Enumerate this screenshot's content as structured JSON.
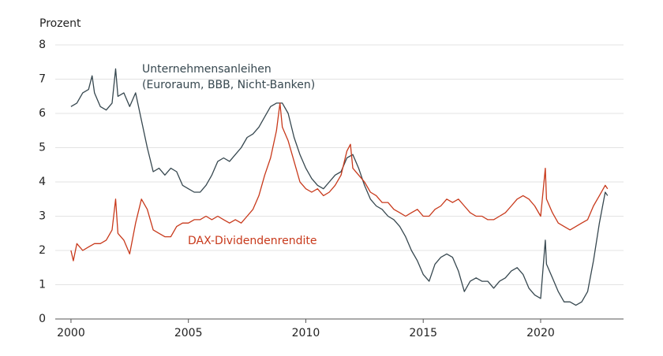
{
  "chart_data": {
    "type": "line",
    "ylabel": "Prozent",
    "annotation": "(Euroraum, BBB, Nicht-Banken)",
    "xlim": [
      1999.33,
      2023.53
    ],
    "xticks": [
      2000,
      2005,
      2010,
      2015,
      2020
    ],
    "ylim": [
      0,
      8
    ],
    "yticks": [
      0,
      1,
      2,
      3,
      4,
      5,
      6,
      7,
      8
    ],
    "grid": true,
    "series": [
      {
        "name": "Unternehmensanleihen",
        "color": "#36474f",
        "x": [
          2000.0,
          2000.25,
          2000.5,
          2000.75,
          2000.9,
          2001.0,
          2001.25,
          2001.5,
          2001.75,
          2001.9,
          2002.0,
          2002.25,
          2002.5,
          2002.75,
          2003.0,
          2003.25,
          2003.5,
          2003.75,
          2004.0,
          2004.25,
          2004.5,
          2004.75,
          2005.0,
          2005.25,
          2005.5,
          2005.75,
          2006.0,
          2006.25,
          2006.5,
          2006.75,
          2007.0,
          2007.25,
          2007.5,
          2007.75,
          2008.0,
          2008.25,
          2008.5,
          2008.75,
          2009.0,
          2009.25,
          2009.5,
          2009.75,
          2010.0,
          2010.25,
          2010.5,
          2010.75,
          2011.0,
          2011.25,
          2011.5,
          2011.75,
          2012.0,
          2012.25,
          2012.5,
          2012.75,
          2013.0,
          2013.25,
          2013.5,
          2013.75,
          2014.0,
          2014.25,
          2014.5,
          2014.75,
          2015.0,
          2015.25,
          2015.5,
          2015.75,
          2016.0,
          2016.25,
          2016.5,
          2016.75,
          2017.0,
          2017.25,
          2017.5,
          2017.75,
          2018.0,
          2018.25,
          2018.5,
          2018.75,
          2019.0,
          2019.25,
          2019.5,
          2019.75,
          2020.0,
          2020.2,
          2020.25,
          2020.5,
          2020.75,
          2021.0,
          2021.25,
          2021.5,
          2021.75,
          2022.0,
          2022.25,
          2022.5,
          2022.75,
          2022.85
        ],
        "values": [
          6.2,
          6.3,
          6.6,
          6.7,
          7.1,
          6.6,
          6.2,
          6.1,
          6.3,
          7.3,
          6.5,
          6.6,
          6.2,
          6.6,
          5.8,
          5.0,
          4.3,
          4.4,
          4.2,
          4.4,
          4.3,
          3.9,
          3.8,
          3.7,
          3.7,
          3.9,
          4.2,
          4.6,
          4.7,
          4.6,
          4.8,
          5.0,
          5.3,
          5.4,
          5.6,
          5.9,
          6.2,
          6.3,
          6.3,
          6.0,
          5.3,
          4.8,
          4.4,
          4.1,
          3.9,
          3.8,
          4.0,
          4.2,
          4.3,
          4.7,
          4.8,
          4.4,
          3.9,
          3.5,
          3.3,
          3.2,
          3.0,
          2.9,
          2.7,
          2.4,
          2.0,
          1.7,
          1.3,
          1.1,
          1.6,
          1.8,
          1.9,
          1.8,
          1.4,
          0.8,
          1.1,
          1.2,
          1.1,
          1.1,
          0.9,
          1.1,
          1.2,
          1.4,
          1.5,
          1.3,
          0.9,
          0.7,
          0.6,
          2.3,
          1.6,
          1.2,
          0.8,
          0.5,
          0.5,
          0.4,
          0.5,
          0.8,
          1.7,
          2.8,
          3.7,
          3.6
        ]
      },
      {
        "name": "DAX-Dividendenrendite",
        "color": "#c8391b",
        "x": [
          2000.0,
          2000.1,
          2000.25,
          2000.5,
          2000.75,
          2001.0,
          2001.25,
          2001.5,
          2001.75,
          2001.9,
          2002.0,
          2002.25,
          2002.5,
          2002.75,
          2003.0,
          2003.25,
          2003.5,
          2003.75,
          2004.0,
          2004.25,
          2004.5,
          2004.75,
          2005.0,
          2005.25,
          2005.5,
          2005.75,
          2006.0,
          2006.25,
          2006.5,
          2006.75,
          2007.0,
          2007.25,
          2007.5,
          2007.75,
          2008.0,
          2008.25,
          2008.5,
          2008.75,
          2008.9,
          2009.0,
          2009.25,
          2009.5,
          2009.75,
          2010.0,
          2010.25,
          2010.5,
          2010.75,
          2011.0,
          2011.25,
          2011.5,
          2011.75,
          2011.9,
          2012.0,
          2012.25,
          2012.5,
          2012.75,
          2013.0,
          2013.25,
          2013.5,
          2013.75,
          2014.0,
          2014.25,
          2014.5,
          2014.75,
          2015.0,
          2015.25,
          2015.5,
          2015.75,
          2016.0,
          2016.25,
          2016.5,
          2016.75,
          2017.0,
          2017.25,
          2017.5,
          2017.75,
          2018.0,
          2018.25,
          2018.5,
          2018.75,
          2019.0,
          2019.25,
          2019.5,
          2019.75,
          2020.0,
          2020.2,
          2020.25,
          2020.5,
          2020.75,
          2021.0,
          2021.25,
          2021.5,
          2021.75,
          2022.0,
          2022.25,
          2022.5,
          2022.75,
          2022.85
        ],
        "values": [
          2.0,
          1.7,
          2.2,
          2.0,
          2.1,
          2.2,
          2.2,
          2.3,
          2.6,
          3.5,
          2.5,
          2.3,
          1.9,
          2.8,
          3.5,
          3.2,
          2.6,
          2.5,
          2.4,
          2.4,
          2.7,
          2.8,
          2.8,
          2.9,
          2.9,
          3.0,
          2.9,
          3.0,
          2.9,
          2.8,
          2.9,
          2.8,
          3.0,
          3.2,
          3.6,
          4.2,
          4.7,
          5.5,
          6.3,
          5.6,
          5.2,
          4.6,
          4.0,
          3.8,
          3.7,
          3.8,
          3.6,
          3.7,
          3.9,
          4.2,
          4.9,
          5.1,
          4.4,
          4.2,
          4.0,
          3.7,
          3.6,
          3.4,
          3.4,
          3.2,
          3.1,
          3.0,
          3.1,
          3.2,
          3.0,
          3.0,
          3.2,
          3.3,
          3.5,
          3.4,
          3.5,
          3.3,
          3.1,
          3.0,
          3.0,
          2.9,
          2.9,
          3.0,
          3.1,
          3.3,
          3.5,
          3.6,
          3.5,
          3.3,
          3.0,
          4.4,
          3.5,
          3.1,
          2.8,
          2.7,
          2.6,
          2.7,
          2.8,
          2.9,
          3.3,
          3.6,
          3.9,
          3.8
        ]
      }
    ]
  }
}
